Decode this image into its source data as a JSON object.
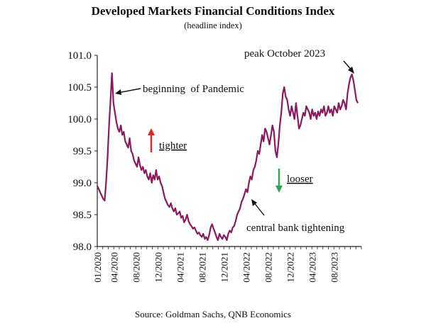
{
  "header": {
    "title": "Developed Markets Financial Conditions Index",
    "subtitle": "(headline index)"
  },
  "footer": {
    "source": "Source: Goldman Sachs, QNB Economics"
  },
  "colors": {
    "series": "#8B1A5C",
    "tighter_arrow": "#e8231f",
    "looser_arrow": "#2aa548",
    "axis": "#222222"
  },
  "chart_data": {
    "type": "line",
    "title": "Developed Markets Financial Conditions Index",
    "subtitle": "(headline index)",
    "xlabel": "",
    "ylabel": "",
    "ylim": [
      98.0,
      101.0
    ],
    "yticks": [
      "98.0",
      "98.5",
      "99.0",
      "99.5",
      "100.0",
      "100.5",
      "101.0"
    ],
    "xticks": [
      "01/2020",
      "04/2020",
      "08/2020",
      "12/2020",
      "04/2021",
      "08/2021",
      "12/2021",
      "04/2022",
      "08/2022",
      "12/2022",
      "04/2023",
      "08/2023"
    ],
    "grid": false,
    "series": [
      {
        "values_by_week": [
          98.95,
          98.9,
          98.85,
          98.8,
          98.75,
          98.72,
          99.0,
          99.4,
          99.9,
          100.3,
          100.72,
          100.25,
          100.1,
          99.95,
          99.85,
          99.8,
          99.9,
          99.75,
          99.8,
          99.65,
          99.6,
          99.55,
          99.7,
          99.5,
          99.45,
          99.35,
          99.3,
          99.25,
          99.4,
          99.28,
          99.2,
          99.25,
          99.15,
          99.2,
          99.1,
          99.05,
          99.15,
          99.0,
          99.12,
          99.05,
          99.2,
          99.05,
          99.1,
          99.0,
          98.95,
          98.85,
          98.75,
          98.7,
          98.65,
          98.62,
          98.68,
          98.6,
          98.55,
          98.6,
          98.5,
          98.52,
          98.55,
          98.45,
          98.48,
          98.38,
          98.42,
          98.5,
          98.4,
          98.35,
          98.32,
          98.28,
          98.3,
          98.25,
          98.2,
          98.22,
          98.18,
          98.15,
          98.2,
          98.12,
          98.15,
          98.1,
          98.18,
          98.3,
          98.35,
          98.28,
          98.22,
          98.15,
          98.1,
          98.2,
          98.15,
          98.12,
          98.18,
          98.15,
          98.1,
          98.2,
          98.25,
          98.22,
          98.3,
          98.32,
          98.4,
          98.5,
          98.55,
          98.6,
          98.7,
          98.75,
          98.82,
          98.9,
          98.85,
          99.0,
          99.1,
          99.05,
          99.2,
          99.25,
          99.35,
          99.5,
          99.45,
          99.6,
          99.75,
          99.65,
          99.85,
          99.8,
          99.7,
          99.6,
          99.75,
          99.9,
          99.8,
          99.5,
          99.4,
          99.6,
          99.9,
          100.1,
          100.4,
          100.5,
          100.35,
          100.3,
          100.15,
          100.05,
          100.2,
          100.1,
          100.0,
          100.25,
          100.05,
          99.85,
          99.9,
          100.0,
          100.1,
          100.05,
          100.2,
          100.15,
          100.1,
          100.0,
          100.15,
          100.05,
          100.1,
          100.0,
          100.12,
          100.05,
          100.15,
          100.1,
          100.2,
          100.05,
          100.1,
          100.2,
          100.1,
          100.15,
          100.05,
          100.2,
          100.15,
          100.1,
          100.25,
          100.15,
          100.2,
          100.3,
          100.25,
          100.15,
          100.4,
          100.55,
          100.65,
          100.7,
          100.6,
          100.45,
          100.3,
          100.25
        ]
      }
    ],
    "annotations": [
      {
        "label": "beginning  of Pandemic",
        "x": "03/2020",
        "y": 100.72
      },
      {
        "label": "peak October 2023",
        "x": "10/2023",
        "y": 100.72
      },
      {
        "label": "central bank tightening",
        "x": "03/2022",
        "y": 98.75
      },
      {
        "label": "tighter",
        "direction": "up"
      },
      {
        "label": "looser",
        "direction": "down"
      }
    ]
  }
}
